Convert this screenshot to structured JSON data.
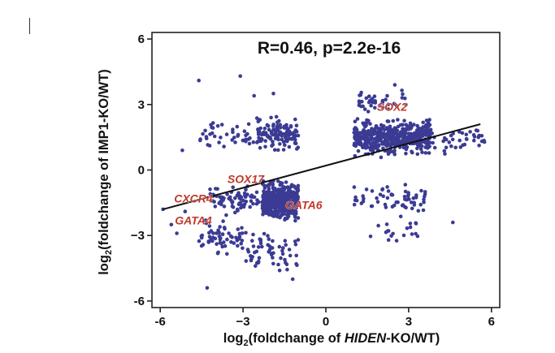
{
  "chart_data": {
    "type": "scatter",
    "title": "R=0.46, p=2.2e-16",
    "xlabel": {
      "prefix": "log",
      "subscript": "2",
      "pre": "(foldchange of ",
      "italic": "HIDEN",
      "post": "-KO/WT)"
    },
    "ylabel": {
      "prefix": "log",
      "subscript": "2",
      "text": "(foldchange of IMP1-KO/WT)"
    },
    "xlim": [
      -6.3,
      6.3
    ],
    "ylim": [
      -6.3,
      6.3
    ],
    "xticks": [
      -6,
      -3,
      0,
      3,
      6
    ],
    "yticks": [
      -6,
      -3,
      0,
      3,
      6
    ],
    "tick_labels": [
      "-6",
      "−3",
      "0",
      "3",
      "6"
    ],
    "point_color": "#3b3b94",
    "label_color": "#c0392b",
    "fit_line": {
      "x": [
        -5.9,
        5.6
      ],
      "y": [
        -1.8,
        2.1
      ]
    },
    "annotations": [
      {
        "text": "SOX2",
        "x": 2.4,
        "y": 2.9
      },
      {
        "text": "SOX17",
        "x": -2.9,
        "y": -0.4
      },
      {
        "text": "CXCR4",
        "x": -4.8,
        "y": -1.3
      },
      {
        "text": "GATA6",
        "x": -0.8,
        "y": -1.6
      },
      {
        "text": "GATA4",
        "x": -4.8,
        "y": -2.3
      }
    ],
    "clusters": [
      {
        "n": 440,
        "x": [
          -2.3,
          -1.0
        ],
        "y": [
          -2.5,
          -0.3
        ]
      },
      {
        "n": 70,
        "x": [
          -4.2,
          -2.4
        ],
        "y": [
          -2.2,
          -0.5
        ]
      },
      {
        "n": 130,
        "x": [
          -2.5,
          -1.0
        ],
        "y": [
          0.7,
          2.6
        ]
      },
      {
        "n": 40,
        "x": [
          -4.6,
          -2.6
        ],
        "y": [
          0.8,
          2.4
        ]
      },
      {
        "n": 60,
        "x": [
          -2.9,
          -1.0
        ],
        "y": [
          -5.0,
          -2.4
        ]
      },
      {
        "n": 60,
        "x": [
          -4.6,
          -3.0
        ],
        "y": [
          -4.2,
          -2.1
        ]
      },
      {
        "n": 480,
        "x": [
          1.0,
          3.8
        ],
        "y": [
          0.5,
          2.5
        ]
      },
      {
        "n": 40,
        "x": [
          1.2,
          3.0
        ],
        "y": [
          2.5,
          3.7
        ]
      },
      {
        "n": 40,
        "x": [
          3.5,
          5.8
        ],
        "y": [
          0.6,
          2.2
        ]
      },
      {
        "n": 60,
        "x": [
          1.0,
          3.6
        ],
        "y": [
          -2.2,
          -0.4
        ]
      },
      {
        "n": 20,
        "x": [
          1.5,
          3.4
        ],
        "y": [
          -3.4,
          -2.0
        ]
      }
    ],
    "outliers": [
      {
        "x": -4.6,
        "y": 4.1
      },
      {
        "x": -3.1,
        "y": 4.3
      },
      {
        "x": -2.6,
        "y": 3.4
      },
      {
        "x": -4.3,
        "y": -5.4
      },
      {
        "x": -5.9,
        "y": -1.8
      },
      {
        "x": -5.6,
        "y": -2.5
      },
      {
        "x": -5.1,
        "y": -1.9
      },
      {
        "x": 4.6,
        "y": -2.4
      },
      {
        "x": 2.5,
        "y": 3.9
      },
      {
        "x": 5.5,
        "y": 1.8
      },
      {
        "x": -5.2,
        "y": 0.9
      },
      {
        "x": -1.2,
        "y": -5.0
      },
      {
        "x": -5.4,
        "y": -2.9
      },
      {
        "x": -1.9,
        "y": 3.5
      }
    ]
  }
}
